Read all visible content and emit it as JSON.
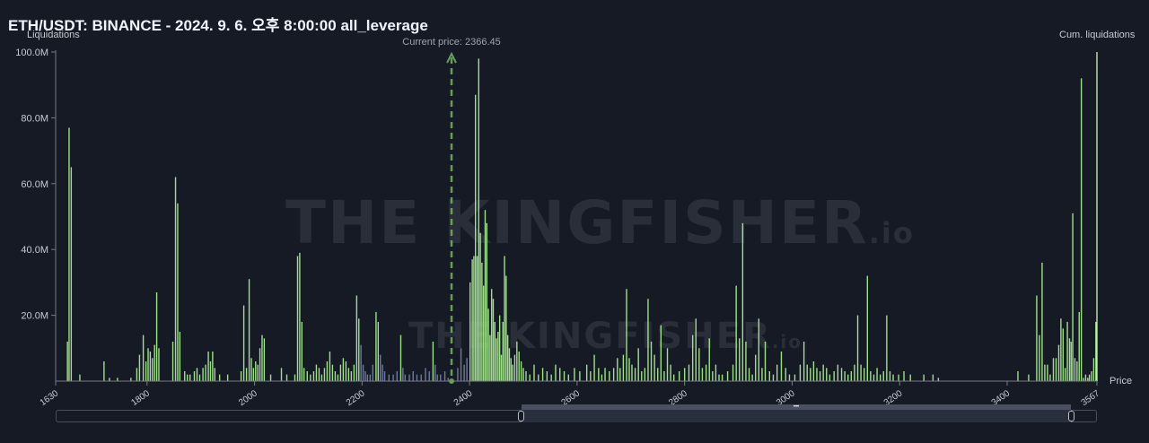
{
  "chart_data": {
    "type": "bar",
    "title": "ETH/USDT: BINANCE - 2024. 9. 6. 오후 8:00:00 all_leverage",
    "ylabel_left": "Liquidations",
    "ylabel_right": "Cum. liquidations",
    "xlabel": "Price",
    "xlim": [
      1630,
      3567
    ],
    "ylim": [
      0,
      100
    ],
    "y_ticks": [
      "20.0M",
      "40.0M",
      "60.0M",
      "80.0M",
      "100.0M"
    ],
    "x_ticks": [
      "1630",
      "1800",
      "2000",
      "2200",
      "2400",
      "2600",
      "2800",
      "3000",
      "3200",
      "3400",
      "3567"
    ],
    "current_price_label": "Current price: 2366.45",
    "current_price": 2366.45,
    "bar_color": "#9fe08a",
    "dim_bar_color": "#6e7a9a",
    "marker_color": "#6a9a5e",
    "series": [
      {
        "name": "Liquidations",
        "unit": "M",
        "points": [
          [
            1652,
            12
          ],
          [
            1655,
            77
          ],
          [
            1659,
            65
          ],
          [
            1675,
            2
          ],
          [
            1720,
            6
          ],
          [
            1730,
            1
          ],
          [
            1745,
            1
          ],
          [
            1770,
            1
          ],
          [
            1781,
            4
          ],
          [
            1786,
            8
          ],
          [
            1793,
            14
          ],
          [
            1798,
            6
          ],
          [
            1802,
            10
          ],
          [
            1806,
            9
          ],
          [
            1810,
            7
          ],
          [
            1814,
            11
          ],
          [
            1818,
            27
          ],
          [
            1822,
            10
          ],
          [
            1848,
            12
          ],
          [
            1853,
            62
          ],
          [
            1857,
            54
          ],
          [
            1861,
            15
          ],
          [
            1870,
            3
          ],
          [
            1875,
            2
          ],
          [
            1880,
            2
          ],
          [
            1888,
            3
          ],
          [
            1893,
            4
          ],
          [
            1898,
            2
          ],
          [
            1904,
            4
          ],
          [
            1909,
            5
          ],
          [
            1914,
            9
          ],
          [
            1918,
            6
          ],
          [
            1922,
            9
          ],
          [
            1926,
            4
          ],
          [
            1935,
            2
          ],
          [
            1950,
            2
          ],
          [
            1975,
            3
          ],
          [
            1980,
            23
          ],
          [
            1985,
            4
          ],
          [
            1990,
            31
          ],
          [
            1994,
            7
          ],
          [
            1998,
            4
          ],
          [
            2002,
            6
          ],
          [
            2006,
            5
          ],
          [
            2010,
            10
          ],
          [
            2014,
            14
          ],
          [
            2018,
            13
          ],
          [
            2030,
            2
          ],
          [
            2050,
            4
          ],
          [
            2060,
            2
          ],
          [
            2075,
            2
          ],
          [
            2080,
            38
          ],
          [
            2084,
            39
          ],
          [
            2088,
            18
          ],
          [
            2092,
            4
          ],
          [
            2098,
            3
          ],
          [
            2104,
            2
          ],
          [
            2110,
            3
          ],
          [
            2115,
            5
          ],
          [
            2120,
            4
          ],
          [
            2125,
            2
          ],
          [
            2130,
            4
          ],
          [
            2135,
            6
          ],
          [
            2140,
            9
          ],
          [
            2145,
            5
          ],
          [
            2150,
            3
          ],
          [
            2155,
            2
          ],
          [
            2160,
            5
          ],
          [
            2165,
            7
          ],
          [
            2170,
            6
          ],
          [
            2175,
            4
          ],
          [
            2180,
            3
          ],
          [
            2185,
            5
          ],
          [
            2190,
            26
          ],
          [
            2194,
            19
          ],
          [
            2198,
            11
          ],
          [
            2202,
            5
          ],
          [
            2206,
            3
          ],
          [
            2210,
            2
          ],
          [
            2215,
            2
          ],
          [
            2220,
            5
          ],
          [
            2226,
            21
          ],
          [
            2230,
            18
          ],
          [
            2234,
            8
          ],
          [
            2238,
            5
          ],
          [
            2242,
            3
          ],
          [
            2250,
            2
          ],
          [
            2258,
            2
          ],
          [
            2265,
            3
          ],
          [
            2272,
            14
          ],
          [
            2276,
            4
          ],
          [
            2280,
            2
          ],
          [
            2288,
            2
          ],
          [
            2295,
            3
          ],
          [
            2302,
            2
          ],
          [
            2310,
            2
          ],
          [
            2318,
            4
          ],
          [
            2325,
            3
          ],
          [
            2332,
            12
          ],
          [
            2336,
            5
          ],
          [
            2340,
            2
          ],
          [
            2346,
            2
          ],
          [
            2354,
            3
          ],
          [
            2360,
            1
          ],
          [
            2378,
            4
          ],
          [
            2384,
            10
          ],
          [
            2390,
            5
          ],
          [
            2395,
            7
          ],
          [
            2401,
            30
          ],
          [
            2405,
            37
          ],
          [
            2408,
            38
          ],
          [
            2411,
            87
          ],
          [
            2414,
            38
          ],
          [
            2417,
            98
          ],
          [
            2420,
            45
          ],
          [
            2423,
            36
          ],
          [
            2426,
            29
          ],
          [
            2429,
            52
          ],
          [
            2432,
            48
          ],
          [
            2435,
            22
          ],
          [
            2438,
            14
          ],
          [
            2441,
            28
          ],
          [
            2444,
            25
          ],
          [
            2447,
            18
          ],
          [
            2450,
            13
          ],
          [
            2453,
            15
          ],
          [
            2456,
            20
          ],
          [
            2459,
            8
          ],
          [
            2462,
            18
          ],
          [
            2465,
            38
          ],
          [
            2468,
            32
          ],
          [
            2471,
            14
          ],
          [
            2474,
            10
          ],
          [
            2477,
            7
          ],
          [
            2480,
            5
          ],
          [
            2484,
            8
          ],
          [
            2488,
            12
          ],
          [
            2492,
            9
          ],
          [
            2496,
            6
          ],
          [
            2500,
            4
          ],
          [
            2505,
            3
          ],
          [
            2512,
            2
          ],
          [
            2520,
            5
          ],
          [
            2528,
            2
          ],
          [
            2536,
            4
          ],
          [
            2544,
            3
          ],
          [
            2552,
            2
          ],
          [
            2560,
            5
          ],
          [
            2568,
            4
          ],
          [
            2576,
            3
          ],
          [
            2584,
            2
          ],
          [
            2595,
            4
          ],
          [
            2605,
            3
          ],
          [
            2618,
            5
          ],
          [
            2625,
            3
          ],
          [
            2632,
            8
          ],
          [
            2640,
            4
          ],
          [
            2646,
            2
          ],
          [
            2652,
            4
          ],
          [
            2660,
            3
          ],
          [
            2668,
            4
          ],
          [
            2675,
            7
          ],
          [
            2680,
            4
          ],
          [
            2686,
            8
          ],
          [
            2692,
            28
          ],
          [
            2697,
            7
          ],
          [
            2702,
            5
          ],
          [
            2708,
            4
          ],
          [
            2714,
            10
          ],
          [
            2720,
            3
          ],
          [
            2726,
            4
          ],
          [
            2732,
            25
          ],
          [
            2738,
            12
          ],
          [
            2744,
            8
          ],
          [
            2750,
            4
          ],
          [
            2756,
            17
          ],
          [
            2762,
            3
          ],
          [
            2768,
            10
          ],
          [
            2774,
            5
          ],
          [
            2780,
            2
          ],
          [
            2790,
            3
          ],
          [
            2800,
            4
          ],
          [
            2808,
            5
          ],
          [
            2815,
            14
          ],
          [
            2821,
            19
          ],
          [
            2827,
            10
          ],
          [
            2833,
            4
          ],
          [
            2840,
            5
          ],
          [
            2846,
            13
          ],
          [
            2852,
            3
          ],
          [
            2858,
            5
          ],
          [
            2864,
            2
          ],
          [
            2870,
            2
          ],
          [
            2880,
            3
          ],
          [
            2890,
            5
          ],
          [
            2896,
            29
          ],
          [
            2902,
            13
          ],
          [
            2908,
            48
          ],
          [
            2914,
            12
          ],
          [
            2920,
            4
          ],
          [
            2926,
            2
          ],
          [
            2932,
            8
          ],
          [
            2938,
            19
          ],
          [
            2944,
            4
          ],
          [
            2950,
            12
          ],
          [
            2958,
            3
          ],
          [
            2965,
            2
          ],
          [
            2972,
            5
          ],
          [
            2980,
            9
          ],
          [
            2988,
            4
          ],
          [
            2995,
            2
          ],
          [
            3005,
            2
          ],
          [
            3015,
            5
          ],
          [
            3022,
            12
          ],
          [
            3028,
            5
          ],
          [
            3034,
            4
          ],
          [
            3040,
            6
          ],
          [
            3046,
            4
          ],
          [
            3052,
            3
          ],
          [
            3058,
            5
          ],
          [
            3064,
            4
          ],
          [
            3070,
            2
          ],
          [
            3078,
            3
          ],
          [
            3085,
            5
          ],
          [
            3092,
            4
          ],
          [
            3098,
            3
          ],
          [
            3104,
            2
          ],
          [
            3110,
            3
          ],
          [
            3116,
            5
          ],
          [
            3122,
            20
          ],
          [
            3128,
            5
          ],
          [
            3134,
            4
          ],
          [
            3140,
            32
          ],
          [
            3146,
            3
          ],
          [
            3152,
            2
          ],
          [
            3158,
            4
          ],
          [
            3164,
            2
          ],
          [
            3170,
            3
          ],
          [
            3176,
            20
          ],
          [
            3182,
            3
          ],
          [
            3188,
            2
          ],
          [
            3198,
            2
          ],
          [
            3208,
            3
          ],
          [
            3220,
            2
          ],
          [
            3245,
            2
          ],
          [
            3262,
            2
          ],
          [
            3272,
            1
          ],
          [
            3420,
            3
          ],
          [
            3440,
            2
          ],
          [
            3455,
            26
          ],
          [
            3460,
            14
          ],
          [
            3465,
            36
          ],
          [
            3470,
            5
          ],
          [
            3475,
            5
          ],
          [
            3480,
            2
          ],
          [
            3486,
            7
          ],
          [
            3491,
            7
          ],
          [
            3496,
            11
          ],
          [
            3500,
            19
          ],
          [
            3504,
            16
          ],
          [
            3508,
            4
          ],
          [
            3512,
            18
          ],
          [
            3516,
            13
          ],
          [
            3519,
            12
          ],
          [
            3522,
            51
          ],
          [
            3526,
            7
          ],
          [
            3530,
            6
          ],
          [
            3534,
            21
          ],
          [
            3538,
            92
          ],
          [
            3542,
            1
          ],
          [
            3546,
            2
          ],
          [
            3550,
            1
          ],
          [
            3553,
            2
          ],
          [
            3557,
            3
          ],
          [
            3561,
            7
          ],
          [
            3565,
            18
          ]
        ]
      },
      {
        "name": "Cum. liquidations",
        "points": [
          [
            3567,
            100
          ]
        ]
      }
    ]
  },
  "watermark": {
    "brand": "THE KINGFISHER",
    "suffix": ".io"
  }
}
